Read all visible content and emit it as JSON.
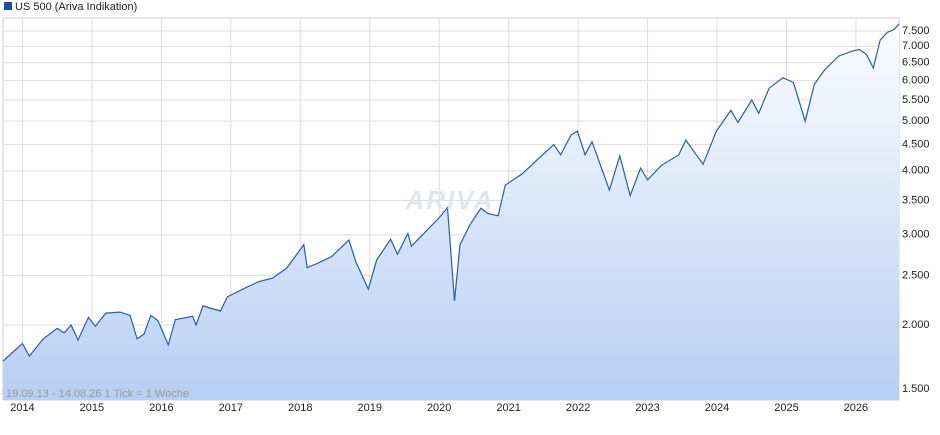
{
  "chart_data": {
    "type": "area",
    "legend": "US 500 (Ariva Indikation)",
    "watermark": "ARIVA",
    "footnote": "19.09.13 - 14.08.26   1 Tick = 1 Woche",
    "log_scale": true,
    "grid": true,
    "color": "#2a5caa",
    "x": [
      2013.72,
      2013.9,
      2014.0,
      2014.1,
      2014.3,
      2014.5,
      2014.6,
      2014.7,
      2014.8,
      2014.95,
      2015.05,
      2015.2,
      2015.4,
      2015.55,
      2015.65,
      2015.75,
      2015.85,
      2015.95,
      2016.1,
      2016.2,
      2016.45,
      2016.5,
      2016.6,
      2016.85,
      2016.95,
      2017.2,
      2017.4,
      2017.6,
      2017.8,
      2018.05,
      2018.1,
      2018.25,
      2018.45,
      2018.7,
      2018.8,
      2018.98,
      2019.1,
      2019.3,
      2019.4,
      2019.55,
      2019.6,
      2019.8,
      2020.0,
      2020.12,
      2020.22,
      2020.3,
      2020.45,
      2020.6,
      2020.7,
      2020.85,
      2020.95,
      2021.2,
      2021.45,
      2021.65,
      2021.75,
      2021.9,
      2021.99,
      2022.1,
      2022.2,
      2022.45,
      2022.6,
      2022.75,
      2022.9,
      2023.0,
      2023.2,
      2023.45,
      2023.55,
      2023.8,
      2023.99,
      2024.2,
      2024.3,
      2024.5,
      2024.6,
      2024.75,
      2024.95,
      2025.1,
      2025.27,
      2025.4,
      2025.55,
      2025.75,
      2025.95,
      2026.05,
      2026.15,
      2026.25,
      2026.35,
      2026.45,
      2026.55,
      2026.62
    ],
    "values": [
      1700,
      1790,
      1840,
      1740,
      1880,
      1970,
      1930,
      2000,
      1870,
      2070,
      1990,
      2110,
      2120,
      2090,
      1880,
      1920,
      2090,
      2040,
      1830,
      2050,
      2080,
      2000,
      2180,
      2130,
      2270,
      2360,
      2430,
      2470,
      2580,
      2870,
      2590,
      2640,
      2720,
      2930,
      2660,
      2350,
      2680,
      2940,
      2750,
      3020,
      2850,
      3040,
      3240,
      3390,
      2230,
      2870,
      3150,
      3380,
      3300,
      3270,
      3750,
      3950,
      4250,
      4500,
      4300,
      4700,
      4780,
      4300,
      4560,
      3670,
      4280,
      3580,
      4050,
      3840,
      4100,
      4300,
      4590,
      4120,
      4780,
      5250,
      4970,
      5500,
      5180,
      5800,
      6080,
      5950,
      5000,
      5900,
      6300,
      6700,
      6850,
      6900,
      6750,
      6350,
      7200,
      7450,
      7550,
      7750
    ],
    "xlim": [
      2013.72,
      2026.62
    ],
    "xticks": [
      2014,
      2015,
      2016,
      2017,
      2018,
      2019,
      2020,
      2021,
      2022,
      2023,
      2024,
      2025,
      2026
    ],
    "ylim": [
      1428,
      7950
    ],
    "yticks": [
      {
        "value": 1500,
        "label": "1.500"
      },
      {
        "value": 2000,
        "label": "2.000"
      },
      {
        "value": 2500,
        "label": "2.500"
      },
      {
        "value": 3000,
        "label": "3.000"
      },
      {
        "value": 3500,
        "label": "3.500"
      },
      {
        "value": 4000,
        "label": "4.000"
      },
      {
        "value": 4500,
        "label": "4.500"
      },
      {
        "value": 5000,
        "label": "5.000"
      },
      {
        "value": 5500,
        "label": "5.500"
      },
      {
        "value": 6000,
        "label": "6.000"
      },
      {
        "value": 6500,
        "label": "6.500"
      },
      {
        "value": 7000,
        "label": "7.000"
      },
      {
        "value": 7500,
        "label": "7.500"
      }
    ]
  }
}
